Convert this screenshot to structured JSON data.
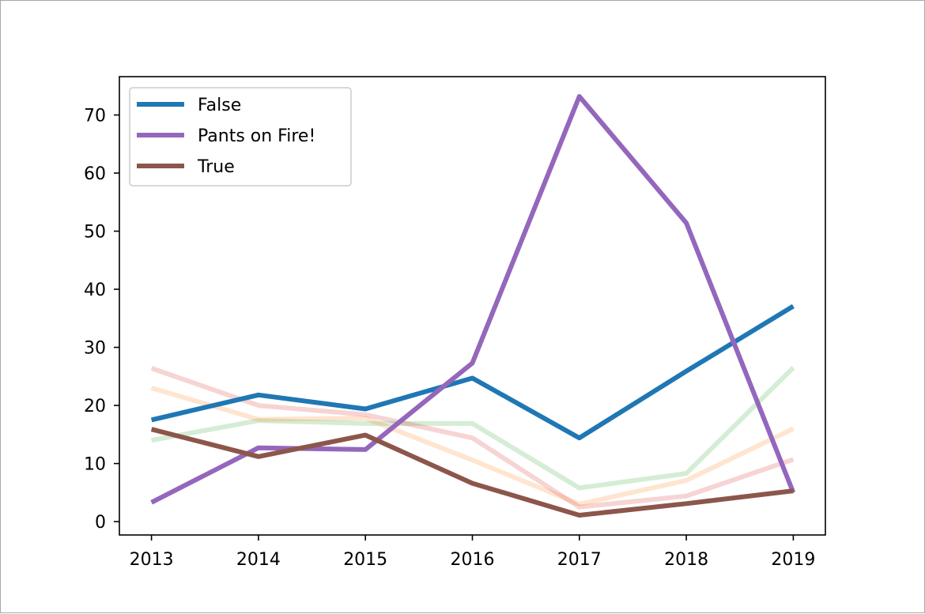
{
  "chart_data": {
    "type": "line",
    "title": "",
    "xlabel": "",
    "ylabel": "",
    "x": [
      2013,
      2014,
      2015,
      2016,
      2017,
      2018,
      2019
    ],
    "xlim": [
      2012.7,
      2019.3
    ],
    "ylim": [
      -2.3,
      76.6
    ],
    "yticks": [
      0,
      10,
      20,
      30,
      40,
      50,
      60,
      70
    ],
    "grid": false,
    "legend_position": "top-left",
    "series": [
      {
        "name": "False",
        "color": "#1f77b4",
        "opacity": 1,
        "in_legend": true,
        "values": [
          17.5,
          21.8,
          19.4,
          24.7,
          14.4,
          25.9,
          37.1
        ]
      },
      {
        "name": "Pants on Fire!",
        "color": "#9467bd",
        "opacity": 1,
        "in_legend": true,
        "values": [
          3.3,
          12.7,
          12.4,
          27.3,
          73.2,
          51.4,
          5.0
        ]
      },
      {
        "name": "True",
        "color": "#8c564b",
        "opacity": 1,
        "in_legend": true,
        "values": [
          15.9,
          11.2,
          14.9,
          6.6,
          1.1,
          3.1,
          5.3
        ]
      },
      {
        "color": "#2ca02c",
        "opacity": 0.2,
        "in_legend": false,
        "values": [
          14.0,
          17.4,
          16.9,
          16.9,
          5.8,
          8.3,
          26.5
        ]
      },
      {
        "color": "#ff7f0e",
        "opacity": 0.2,
        "in_legend": false,
        "values": [
          23.0,
          17.6,
          17.8,
          10.6,
          3.0,
          7.1,
          16.0
        ]
      },
      {
        "color": "#d62728",
        "opacity": 0.2,
        "in_legend": false,
        "values": [
          26.4,
          20.0,
          18.4,
          14.4,
          2.5,
          4.4,
          10.7
        ]
      }
    ]
  }
}
